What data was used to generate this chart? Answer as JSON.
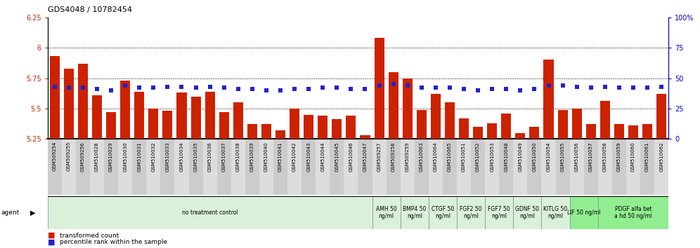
{
  "title": "GDS4048 / 10782454",
  "bar_labels": [
    "GSM509254",
    "GSM509255",
    "GSM509256",
    "GSM510028",
    "GSM510029",
    "GSM510030",
    "GSM510031",
    "GSM510032",
    "GSM510033",
    "GSM510034",
    "GSM510035",
    "GSM510036",
    "GSM510037",
    "GSM510038",
    "GSM510039",
    "GSM510040",
    "GSM510041",
    "GSM510042",
    "GSM510043",
    "GSM510044",
    "GSM510045",
    "GSM510046",
    "GSM510047",
    "GSM509257",
    "GSM509258",
    "GSM509259",
    "GSM510063",
    "GSM510064",
    "GSM510065",
    "GSM510051",
    "GSM510052",
    "GSM510053",
    "GSM510048",
    "GSM510049",
    "GSM510050",
    "GSM510054",
    "GSM510055",
    "GSM510056",
    "GSM510057",
    "GSM510058",
    "GSM510059",
    "GSM510060",
    "GSM510061",
    "GSM510062"
  ],
  "bar_values": [
    5.93,
    5.83,
    5.87,
    5.61,
    5.47,
    5.73,
    5.64,
    5.5,
    5.48,
    5.63,
    5.6,
    5.64,
    5.47,
    5.55,
    5.37,
    5.37,
    5.32,
    5.5,
    5.45,
    5.44,
    5.41,
    5.44,
    5.28,
    6.08,
    5.8,
    5.75,
    5.49,
    5.62,
    5.55,
    5.42,
    5.35,
    5.38,
    5.46,
    5.3,
    5.35,
    5.9,
    5.49,
    5.5,
    5.37,
    5.56,
    5.37,
    5.36,
    5.37,
    5.62
  ],
  "percentile_values": [
    43,
    42,
    42,
    41,
    40,
    44,
    42,
    42,
    43,
    43,
    42,
    43,
    42,
    41,
    41,
    40,
    40,
    41,
    41,
    42,
    42,
    41,
    41,
    44,
    45,
    44,
    42,
    42,
    42,
    41,
    40,
    41,
    41,
    40,
    41,
    44,
    44,
    43,
    42,
    43,
    42,
    42,
    42,
    43
  ],
  "ylim": [
    5.25,
    6.25
  ],
  "yticks": [
    5.25,
    5.5,
    5.75,
    6.0,
    6.25
  ],
  "ytick_labels": [
    "5.25",
    "5.5",
    "5.75",
    "6",
    "6.25"
  ],
  "y2lim": [
    0,
    100
  ],
  "y2ticks": [
    0,
    25,
    50,
    75,
    100
  ],
  "y2tick_labels": [
    "0",
    "25",
    "50",
    "75",
    "100%"
  ],
  "dotted_lines": [
    6.0,
    5.75,
    5.5
  ],
  "bar_color": "#cc2200",
  "dot_color": "#2222cc",
  "agent_groups": [
    {
      "label": "no treatment control",
      "start": 0,
      "end": 23,
      "color": "#d9f0d9"
    },
    {
      "label": "AMH 50\nng/ml",
      "start": 23,
      "end": 25,
      "color": "#d9f0d9"
    },
    {
      "label": "BMP4 50\nng/ml",
      "start": 25,
      "end": 27,
      "color": "#d9f0d9"
    },
    {
      "label": "CTGF 50\nng/ml",
      "start": 27,
      "end": 29,
      "color": "#d9f0d9"
    },
    {
      "label": "FGF2 50\nng/ml",
      "start": 29,
      "end": 31,
      "color": "#d9f0d9"
    },
    {
      "label": "FGF7 50\nng/ml",
      "start": 31,
      "end": 33,
      "color": "#d9f0d9"
    },
    {
      "label": "GDNF 50\nng/ml",
      "start": 33,
      "end": 35,
      "color": "#d9f0d9"
    },
    {
      "label": "KITLG 50\nng/ml",
      "start": 35,
      "end": 37,
      "color": "#d9f0d9"
    },
    {
      "label": "LIF 50 ng/ml",
      "start": 37,
      "end": 39,
      "color": "#90ee90"
    },
    {
      "label": "PDGF alfa bet\na hd 50 ng/ml",
      "start": 39,
      "end": 44,
      "color": "#90ee90"
    }
  ],
  "tick_bg_colors": [
    "#cccccc",
    "#dddddd"
  ]
}
